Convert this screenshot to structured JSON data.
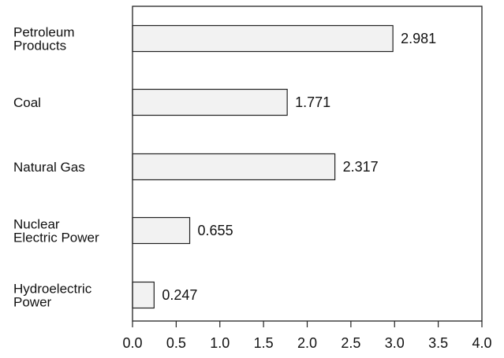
{
  "chart_data": {
    "type": "bar",
    "orientation": "horizontal",
    "title": "",
    "xlabel": "",
    "ylabel": "",
    "categories": [
      [
        "Petroleum",
        "Products"
      ],
      [
        "Coal"
      ],
      [
        "Natural Gas"
      ],
      [
        "Nuclear",
        "Electric Power"
      ],
      [
        "Hydroelectric",
        "Power"
      ]
    ],
    "values": [
      2.981,
      1.771,
      2.317,
      0.655,
      0.247
    ],
    "value_labels": [
      "2.981",
      "1.771",
      "2.317",
      "0.655",
      "0.247"
    ],
    "xlim": [
      0,
      4
    ],
    "xticks": [
      "0.0",
      "0.5",
      "1.0",
      "1.5",
      "2.0",
      "2.5",
      "3.0",
      "3.5",
      "4.0"
    ],
    "grid": false,
    "legend": "none",
    "colors": {
      "bar_fill": "#f2f2f2",
      "bar_stroke": "#222222",
      "frame": "#222222"
    }
  }
}
